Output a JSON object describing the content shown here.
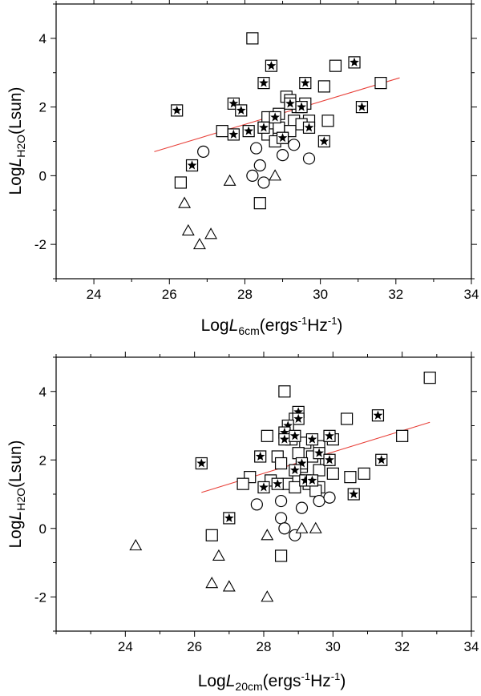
{
  "chart_data": [
    {
      "type": "scatter",
      "panel": "top",
      "xlabel": {
        "prefix": "Log",
        "var": "L",
        "sub": "6cm",
        "unit_pre": "(ergs",
        "unit_sup": "-1",
        "unit_mid": "Hz",
        "unit_sup2": "-1",
        "unit_post": ")"
      },
      "ylabel": {
        "prefix": "Log",
        "var": "L",
        "sub": "H2O",
        "unit": "(Lsun)"
      },
      "xlim": [
        23,
        34
      ],
      "ylim": [
        -3,
        5
      ],
      "xticks": [
        "24",
        "26",
        "28",
        "30",
        "32",
        "34"
      ],
      "yticks": [
        "-2",
        "0",
        "2",
        "4"
      ],
      "grid": false,
      "fit_line": {
        "x": [
          25.6,
          32.1
        ],
        "y": [
          0.7,
          2.85
        ],
        "color": "#e8413a"
      },
      "series": [
        {
          "name": "squares",
          "marker": "square",
          "points": [
            [
              28.2,
              4.0
            ],
            [
              30.4,
              3.2
            ],
            [
              30.1,
              2.6
            ],
            [
              31.6,
              2.7
            ],
            [
              29.1,
              2.3
            ],
            [
              29.2,
              2.2
            ],
            [
              29.4,
              2.0
            ],
            [
              29.6,
              2.1
            ],
            [
              28.9,
              1.8
            ],
            [
              28.6,
              1.7
            ],
            [
              29.3,
              1.6
            ],
            [
              29.7,
              1.6
            ],
            [
              30.2,
              1.6
            ],
            [
              29.5,
              1.5
            ],
            [
              28.5,
              1.4
            ],
            [
              28.9,
              1.4
            ],
            [
              29.2,
              1.3
            ],
            [
              27.4,
              1.3
            ],
            [
              28.6,
              1.2
            ],
            [
              29.0,
              1.1
            ],
            [
              28.8,
              1.0
            ],
            [
              26.3,
              -0.2
            ],
            [
              28.4,
              -0.8
            ]
          ]
        },
        {
          "name": "boxed stars",
          "marker": "star-box",
          "points": [
            [
              28.7,
              3.2
            ],
            [
              30.9,
              3.3
            ],
            [
              28.5,
              2.7
            ],
            [
              29.6,
              2.7
            ],
            [
              27.7,
              2.1
            ],
            [
              29.2,
              2.1
            ],
            [
              31.1,
              2.0
            ],
            [
              26.2,
              1.9
            ],
            [
              27.9,
              1.9
            ],
            [
              29.5,
              2.0
            ],
            [
              28.8,
              1.7
            ],
            [
              28.5,
              1.4
            ],
            [
              29.7,
              1.4
            ],
            [
              28.1,
              1.3
            ],
            [
              27.7,
              1.2
            ],
            [
              29.0,
              1.1
            ],
            [
              30.1,
              1.0
            ],
            [
              26.6,
              0.3
            ]
          ]
        },
        {
          "name": "circles",
          "marker": "circle",
          "points": [
            [
              26.9,
              0.7
            ],
            [
              28.3,
              0.8
            ],
            [
              29.0,
              0.6
            ],
            [
              29.3,
              0.9
            ],
            [
              29.7,
              0.5
            ],
            [
              28.4,
              0.3
            ],
            [
              28.2,
              0.0
            ],
            [
              28.5,
              -0.2
            ]
          ]
        },
        {
          "name": "triangles",
          "marker": "triangle",
          "points": [
            [
              26.4,
              -0.8
            ],
            [
              27.6,
              -0.15
            ],
            [
              28.8,
              0.0
            ],
            [
              26.5,
              -1.6
            ],
            [
              27.1,
              -1.7
            ],
            [
              26.8,
              -2.0
            ]
          ]
        }
      ]
    },
    {
      "type": "scatter",
      "panel": "bottom",
      "xlabel": {
        "prefix": "Log",
        "var": "L",
        "sub": "20cm",
        "unit_pre": "(ergs",
        "unit_sup": "-1",
        "unit_mid": "Hz",
        "unit_sup2": "-1",
        "unit_post": ")"
      },
      "ylabel": {
        "prefix": "Log",
        "var": "L",
        "sub": "H2O",
        "unit": "(Lsun)"
      },
      "xlim": [
        22,
        34
      ],
      "ylim": [
        -3,
        5
      ],
      "xticks": [
        "24",
        "26",
        "28",
        "30",
        "32",
        "34"
      ],
      "yticks": [
        "-2",
        "0",
        "2",
        "4"
      ],
      "grid": false,
      "fit_line": {
        "x": [
          26.2,
          32.8
        ],
        "y": [
          1.05,
          3.1
        ],
        "color": "#e8413a"
      },
      "series": [
        {
          "name": "squares",
          "marker": "square",
          "points": [
            [
              32.8,
              4.4
            ],
            [
              28.6,
              4.0
            ],
            [
              30.4,
              3.2
            ],
            [
              28.9,
              3.2
            ],
            [
              28.1,
              2.7
            ],
            [
              28.8,
              2.6
            ],
            [
              29.2,
              2.5
            ],
            [
              29.6,
              2.4
            ],
            [
              32.0,
              2.7
            ],
            [
              28.4,
              2.1
            ],
            [
              30.0,
              2.6
            ],
            [
              29.0,
              2.2
            ],
            [
              29.4,
              2.1
            ],
            [
              29.8,
              2.0
            ],
            [
              28.5,
              1.9
            ],
            [
              29.1,
              1.8
            ],
            [
              29.6,
              1.7
            ],
            [
              30.0,
              1.6
            ],
            [
              30.9,
              1.6
            ],
            [
              30.5,
              1.5
            ],
            [
              27.6,
              1.5
            ],
            [
              28.2,
              1.4
            ],
            [
              28.7,
              1.3
            ],
            [
              29.0,
              1.4
            ],
            [
              29.3,
              1.3
            ],
            [
              29.6,
              1.2
            ],
            [
              28.9,
              1.2
            ],
            [
              27.4,
              1.3
            ],
            [
              29.5,
              1.1
            ],
            [
              26.5,
              -0.2
            ],
            [
              28.5,
              -0.8
            ]
          ]
        },
        {
          "name": "boxed stars",
          "marker": "star-box",
          "points": [
            [
              29.0,
              3.4
            ],
            [
              29.0,
              3.2
            ],
            [
              31.3,
              3.3
            ],
            [
              28.7,
              3.0
            ],
            [
              28.6,
              2.8
            ],
            [
              28.6,
              2.6
            ],
            [
              28.9,
              2.7
            ],
            [
              29.4,
              2.6
            ],
            [
              29.9,
              2.7
            ],
            [
              29.6,
              2.2
            ],
            [
              29.1,
              1.9
            ],
            [
              27.9,
              2.1
            ],
            [
              29.9,
              2.0
            ],
            [
              31.4,
              2.0
            ],
            [
              26.2,
              1.9
            ],
            [
              28.9,
              1.7
            ],
            [
              29.2,
              1.4
            ],
            [
              29.4,
              1.4
            ],
            [
              28.4,
              1.3
            ],
            [
              28.0,
              1.2
            ],
            [
              30.6,
              1.0
            ],
            [
              27.0,
              0.3
            ]
          ]
        },
        {
          "name": "circles",
          "marker": "circle",
          "points": [
            [
              28.5,
              0.8
            ],
            [
              29.1,
              0.6
            ],
            [
              29.6,
              0.8
            ],
            [
              29.9,
              0.9
            ],
            [
              27.8,
              0.7
            ],
            [
              28.5,
              0.3
            ],
            [
              28.6,
              0.0
            ],
            [
              28.9,
              -0.2
            ]
          ]
        },
        {
          "name": "triangles",
          "marker": "triangle",
          "points": [
            [
              24.3,
              -0.5
            ],
            [
              26.7,
              -0.8
            ],
            [
              28.1,
              -0.2
            ],
            [
              29.1,
              0.0
            ],
            [
              29.5,
              0.0
            ],
            [
              26.5,
              -1.6
            ],
            [
              27.0,
              -1.7
            ],
            [
              28.1,
              -2.0
            ]
          ]
        }
      ]
    }
  ]
}
